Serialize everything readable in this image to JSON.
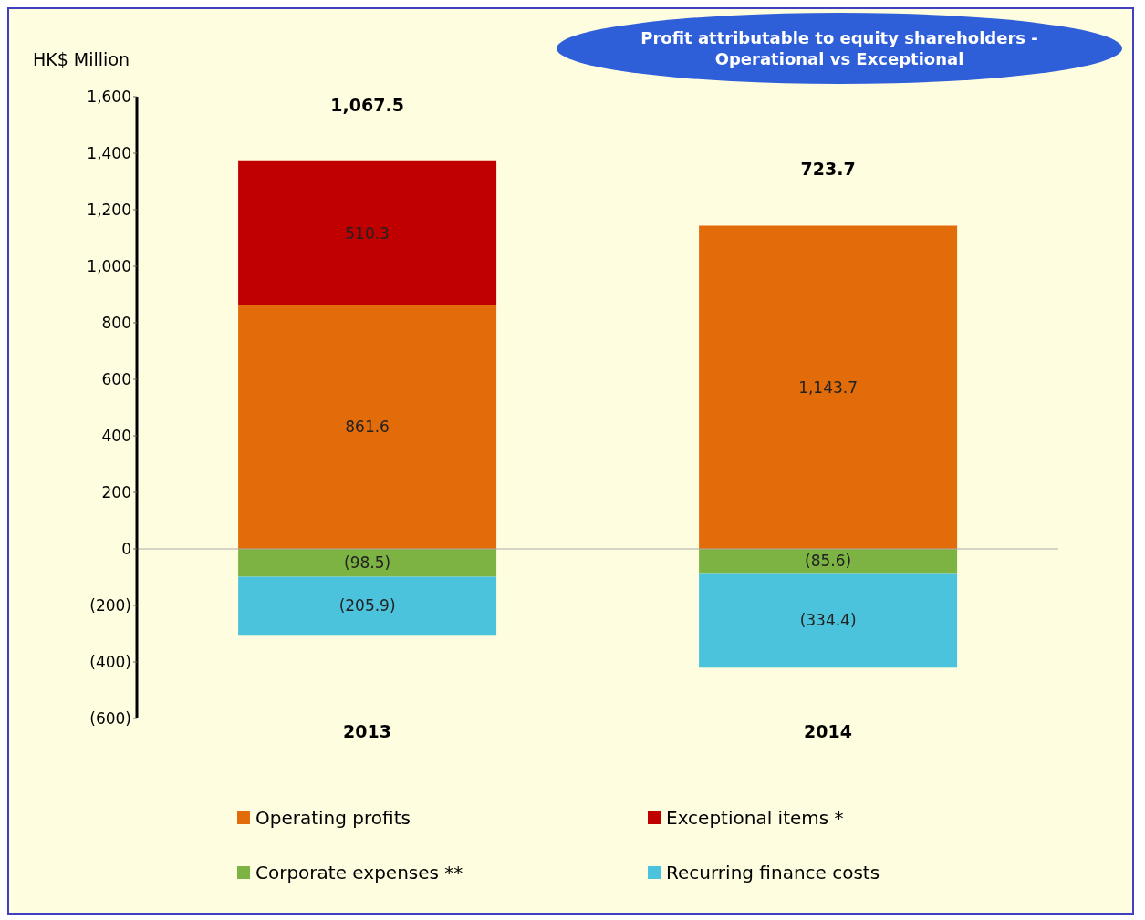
{
  "chart_data": {
    "type": "bar",
    "stacked": true,
    "title": "Profit attributable to equity shareholders - Operational vs Exceptional",
    "ylabel": "HK$ Million",
    "categories": [
      "2013",
      "2014"
    ],
    "series": [
      {
        "name": "Operating profits",
        "color": "#e36c0a",
        "values": [
          861.6,
          1143.7
        ],
        "value_labels": [
          "861.6",
          "1,143.7"
        ]
      },
      {
        "name": "Exceptional items *",
        "color": "#c00000",
        "values": [
          510.3,
          null
        ],
        "value_labels": [
          "510.3",
          null
        ]
      },
      {
        "name": "Corporate expenses **",
        "color": "#7cb342",
        "values": [
          -98.5,
          -85.6
        ],
        "value_labels": [
          "(98.5)",
          "(85.6)"
        ]
      },
      {
        "name": "Recurring finance costs",
        "color": "#4cc3dc",
        "values": [
          -205.9,
          -334.4
        ],
        "value_labels": [
          "(205.9)",
          "(334.4)"
        ]
      }
    ],
    "totals": [
      "1,067.5",
      "723.7"
    ],
    "ylim": [
      -600,
      1600
    ],
    "yticks": [
      {
        "value": -600,
        "label": "(600)"
      },
      {
        "value": -400,
        "label": "(400)"
      },
      {
        "value": -200,
        "label": "(200)"
      },
      0,
      200,
      400,
      600,
      800,
      {
        "value": 1000,
        "label": "1,000"
      },
      {
        "value": 1200,
        "label": "1,200"
      },
      {
        "value": 1400,
        "label": "1,400"
      },
      {
        "value": 1600,
        "label": "1,600"
      }
    ],
    "ref_lines": [
      {
        "axis": "y",
        "value": 0,
        "color": "#aaaaaa"
      }
    ],
    "grid": false,
    "legend": "bottom"
  }
}
